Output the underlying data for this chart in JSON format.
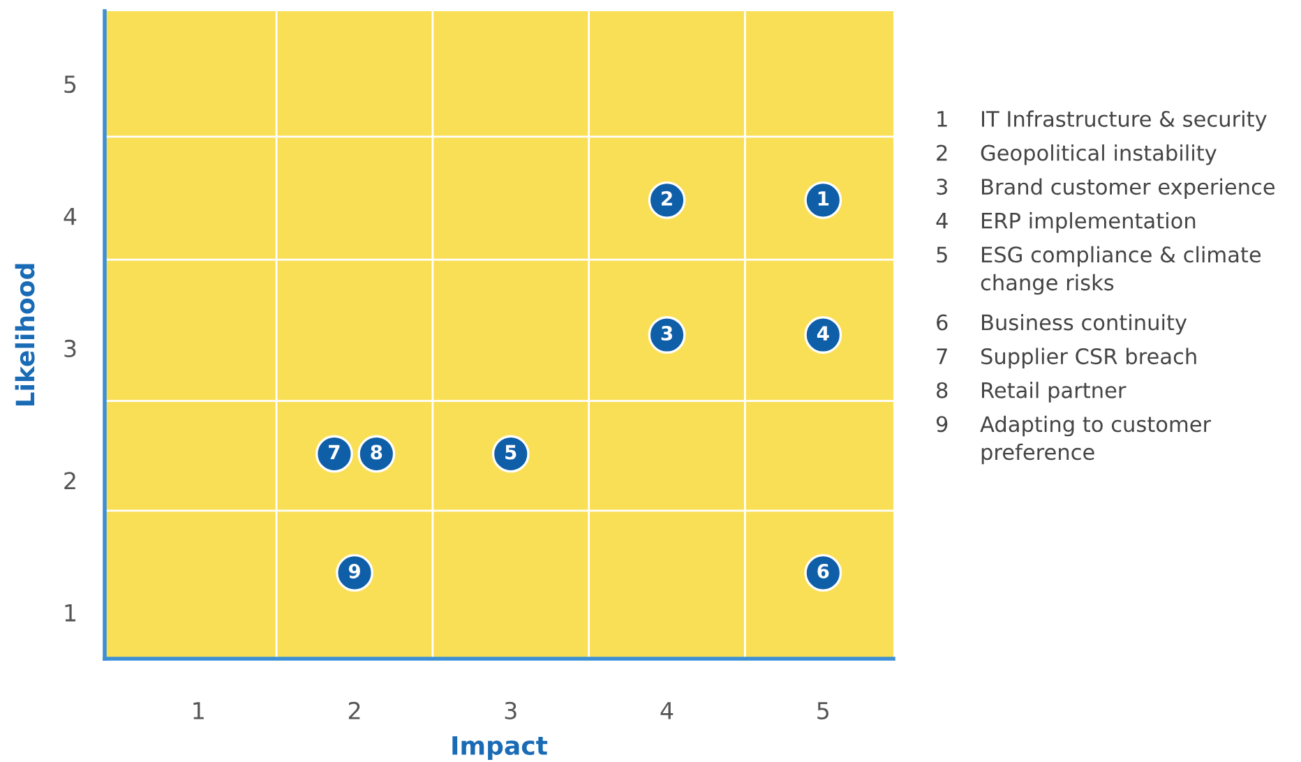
{
  "chart_data": {
    "type": "scatter",
    "xlabel": "Impact",
    "ylabel": "Likelihood",
    "x": [
      5,
      4,
      4,
      5,
      3,
      5,
      1.87,
      2.14,
      2
    ],
    "values": [
      4.12,
      4.12,
      3.1,
      3.1,
      2.2,
      1.3,
      2.2,
      2.2,
      1.3
    ],
    "color": "#0f5ea8",
    "marker": "circle",
    "xlim": [
      0.4,
      5.45
    ],
    "ylim": [
      0.65,
      5.55
    ],
    "xticks": [
      1,
      2,
      3,
      4,
      5,
      {
        "value": 1.5,
        "label": null
      },
      {
        "value": 2.5,
        "label": null
      },
      {
        "value": 3.5,
        "label": null
      },
      {
        "value": 4.5,
        "label": null
      }
    ],
    "yticks": [
      1,
      2,
      3,
      4,
      5,
      {
        "value": 1.77,
        "label": null
      },
      {
        "value": 2.6,
        "label": null
      },
      {
        "value": 3.67,
        "label": null
      },
      {
        "value": 4.6,
        "label": null
      }
    ],
    "grid": true,
    "annotations": [
      {
        "text": "1",
        "x": 5,
        "y": 4.12
      },
      {
        "text": "2",
        "x": 4,
        "y": 4.12
      },
      {
        "text": "3",
        "x": 4,
        "y": 3.1
      },
      {
        "text": "4",
        "x": 5,
        "y": 3.1
      },
      {
        "text": "5",
        "x": 3,
        "y": 2.2
      },
      {
        "text": "6",
        "x": 5,
        "y": 1.3
      },
      {
        "text": "7",
        "x": 1.87,
        "y": 2.2
      },
      {
        "text": "8",
        "x": 2.14,
        "y": 2.2
      },
      {
        "text": "9",
        "x": 2,
        "y": 1.3
      },
      "1 IT Infrastructure & security",
      "2 Geopolitical instability",
      "3 Brand customer experience",
      "4 ERP implementation",
      "5 ESG compliance & climate\nchange risks",
      "6 Business continuity",
      "7 Supplier CSR breach",
      "8 Retail partner",
      "9 Adapting to customer\npreference"
    ]
  }
}
